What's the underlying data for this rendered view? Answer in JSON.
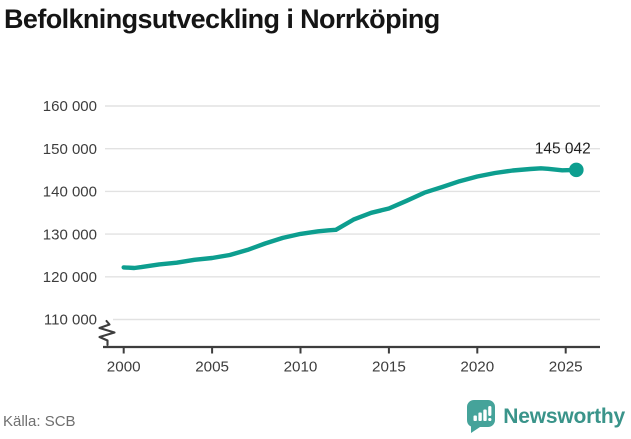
{
  "title": "Befolkningsutveckling i Norrköping",
  "footer": {
    "source": "Källa: SCB",
    "brand_name": "Newsworthy"
  },
  "colors": {
    "line": "#0d9e8f",
    "marker": "#0d9e8f",
    "grid": "#e2e2e2",
    "axis": "#3d3d3d",
    "tick_label": "#3d3d3d",
    "title": "#151515",
    "end_label": "#1f1f1f",
    "source": "#6f6f6f",
    "brand_text": "#3a948a",
    "brand_icon": "#45a39a"
  },
  "chart_data": {
    "type": "line",
    "title": "Befolkningsutveckling i Norrköping",
    "xlabel": "",
    "ylabel": "",
    "grid": "horizontal",
    "legend": "none",
    "axis_break": true,
    "xlim": [
      2000,
      2026.5
    ],
    "ylim": [
      110000,
      163500
    ],
    "x_ticks": {
      "values": [
        2000,
        2005,
        2010,
        2015,
        2020,
        2025
      ],
      "labels": [
        "2000",
        "2005",
        "2010",
        "2015",
        "2020",
        "2025"
      ]
    },
    "y_ticks": {
      "values": [
        160000,
        150000,
        140000,
        130000,
        120000,
        110000
      ],
      "labels": [
        "160 000",
        "150 000",
        "140 000",
        "130 000",
        "120 000",
        "110 000"
      ]
    },
    "series": [
      {
        "name": "Folkmängd i Norrköping",
        "points": [
          [
            2000,
            122212
          ],
          [
            2000.6,
            122050
          ],
          [
            2001,
            122280
          ],
          [
            2002,
            122900
          ],
          [
            2003,
            123300
          ],
          [
            2004,
            123970
          ],
          [
            2005,
            124400
          ],
          [
            2006,
            125100
          ],
          [
            2007,
            126300
          ],
          [
            2008,
            127800
          ],
          [
            2009,
            129100
          ],
          [
            2010,
            130050
          ],
          [
            2011,
            130650
          ],
          [
            2011.6,
            130900
          ],
          [
            2012,
            131000
          ],
          [
            2013,
            133400
          ],
          [
            2014,
            135000
          ],
          [
            2015,
            136000
          ],
          [
            2016,
            137800
          ],
          [
            2017,
            139700
          ],
          [
            2017.6,
            140500
          ],
          [
            2018,
            141000
          ],
          [
            2019,
            142400
          ],
          [
            2020,
            143500
          ],
          [
            2021,
            144300
          ],
          [
            2022,
            144900
          ],
          [
            2023,
            145250
          ],
          [
            2023.6,
            145400
          ],
          [
            2024,
            145300
          ],
          [
            2024.8,
            144950
          ],
          [
            2025.6,
            145042
          ]
        ]
      }
    ],
    "end_point_label": "145 042",
    "end_point_value": 145042
  }
}
